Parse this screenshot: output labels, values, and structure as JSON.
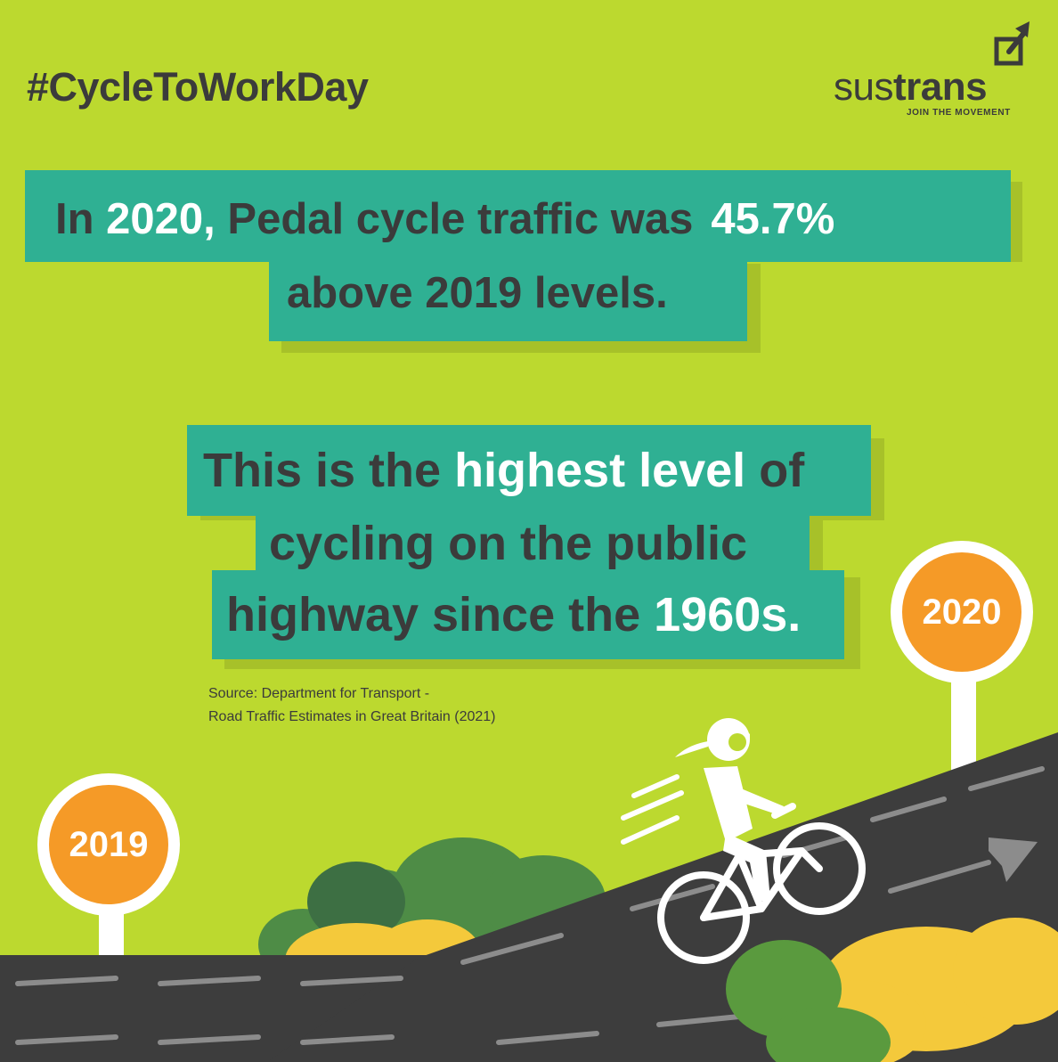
{
  "hashtag": "#CycleToWorkDay",
  "logo": {
    "word_light": "sus",
    "word_bold": "trans",
    "tagline": "JOIN THE MOVEMENT",
    "icon": "share-arrow-icon"
  },
  "stat_box": {
    "line1_a": "In",
    "line1_year": "2020,",
    "line1_b": "Pedal cycle traffic was",
    "line1_percent": "45.7%",
    "line2": "above 2019 levels."
  },
  "highlight_box": {
    "line1_a": "This is the",
    "line1_highlight": "highest level",
    "line1_b": "of",
    "line2": "cycling on the public",
    "line3_a": "highway since the",
    "line3_highlight": "1960s."
  },
  "source": {
    "line1": "Source: Department for Transport -",
    "line2": "Road Traffic Estimates in Great Britain (2021)"
  },
  "signs": {
    "start": "2019",
    "end": "2020"
  },
  "colors": {
    "background": "#bcd92f",
    "teal": "#2fb093",
    "text_dark": "#3b3b3b",
    "orange": "#f59a27",
    "road": "#3d3d3d",
    "bush_dark": "#4e8c46",
    "bush_yellow": "#f4c93b"
  }
}
